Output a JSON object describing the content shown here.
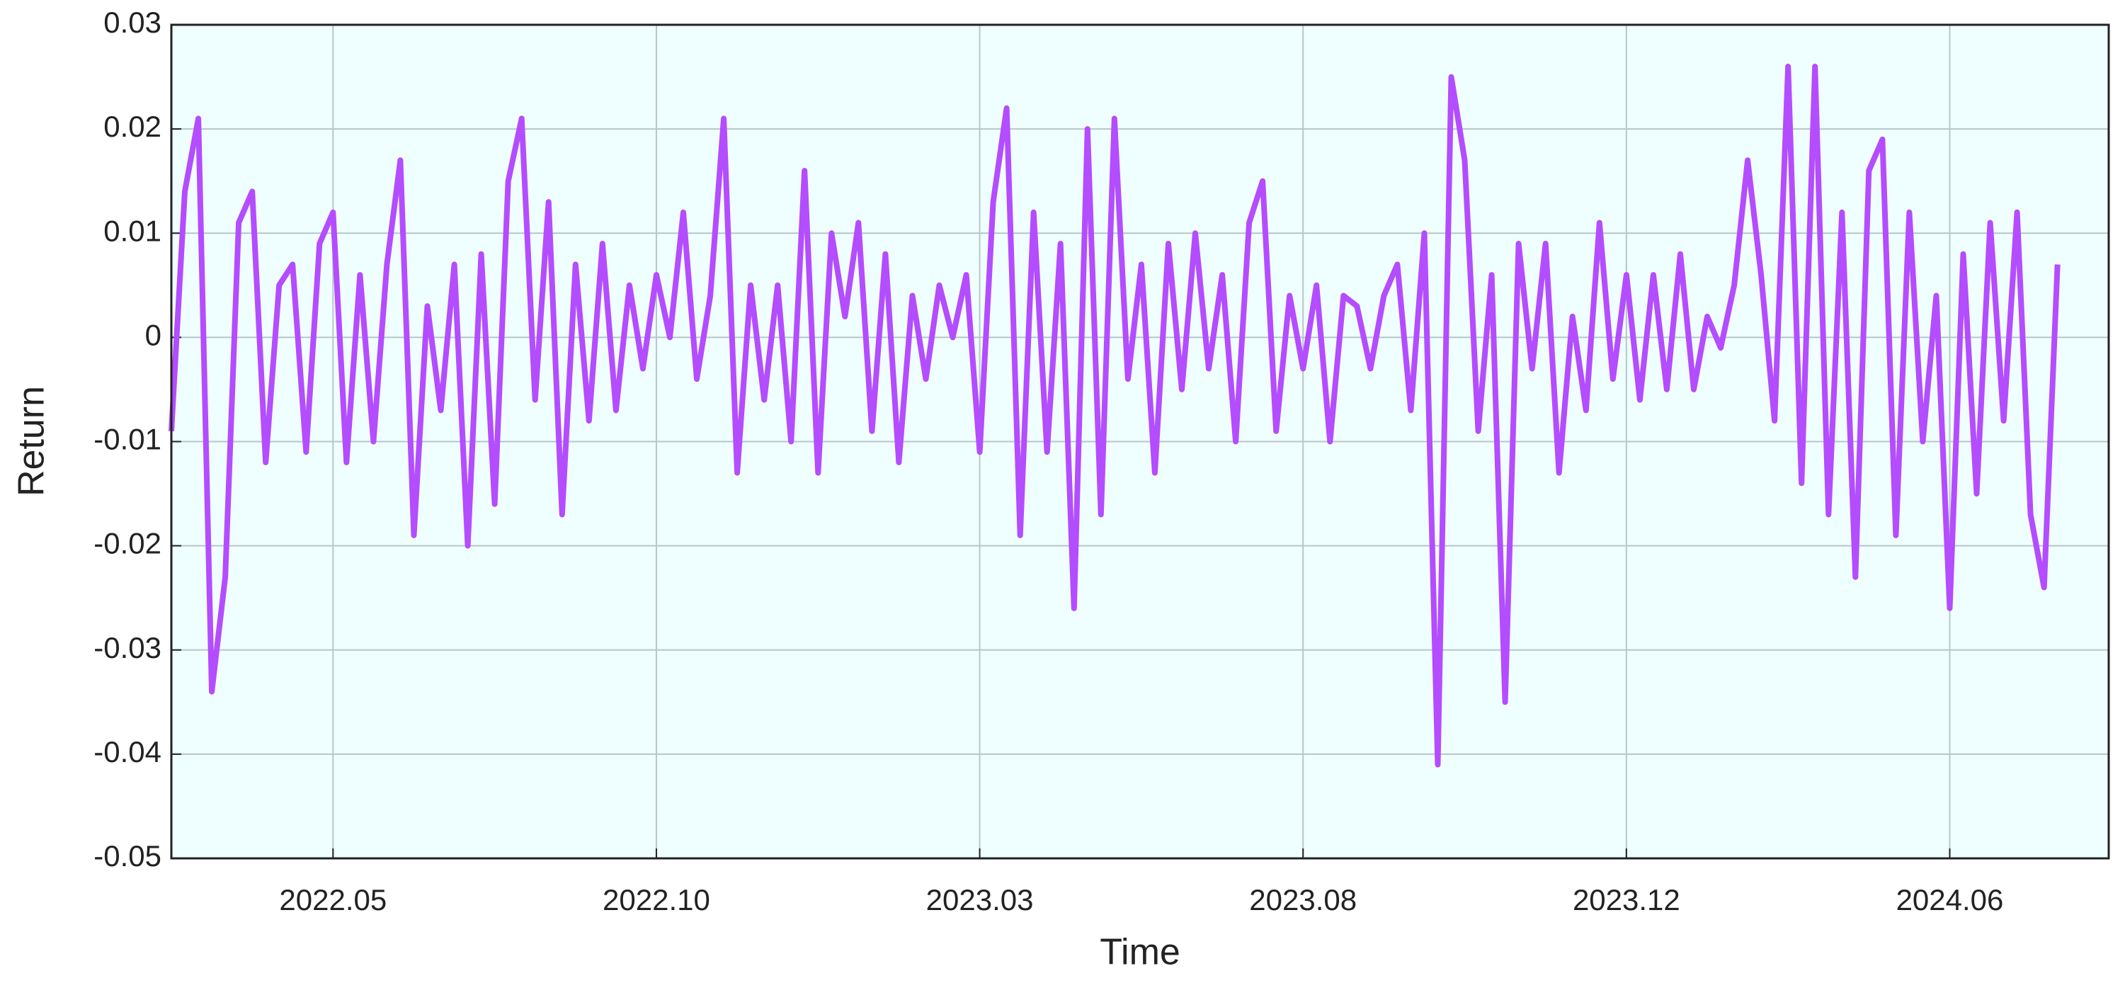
{
  "chart_data": {
    "type": "line",
    "xlabel": "Time",
    "ylabel": "Return",
    "categories": [
      null,
      null,
      null,
      null,
      null,
      null,
      null,
      null,
      null,
      null,
      null,
      null,
      "2022.05",
      null,
      null,
      null,
      null,
      null,
      null,
      null,
      null,
      null,
      null,
      null,
      null,
      null,
      null,
      null,
      null,
      null,
      null,
      null,
      null,
      null,
      null,
      null,
      "2022.10",
      null,
      null,
      null,
      null,
      null,
      null,
      null,
      null,
      null,
      null,
      null,
      null,
      null,
      null,
      null,
      null,
      null,
      null,
      null,
      null,
      null,
      null,
      null,
      "2023.03",
      null,
      null,
      null,
      null,
      null,
      null,
      null,
      null,
      null,
      null,
      null,
      null,
      null,
      null,
      null,
      null,
      null,
      null,
      null,
      null,
      null,
      null,
      null,
      "2023.08",
      null,
      null,
      null,
      null,
      null,
      null,
      null,
      null,
      null,
      null,
      null,
      null,
      null,
      null,
      null,
      null,
      null,
      null,
      null,
      null,
      null,
      null,
      null,
      "2023.12",
      null,
      null,
      null,
      null,
      null,
      null,
      null,
      null,
      null,
      null,
      null,
      null,
      null,
      null,
      null,
      null,
      null,
      null,
      null,
      null,
      null,
      null,
      null,
      "2024.06",
      null,
      null,
      null,
      null,
      null,
      null,
      null,
      null
    ],
    "values": [
      -0.009,
      0.014,
      0.021,
      -0.034,
      -0.023,
      0.011,
      0.014,
      -0.012,
      0.005,
      0.007,
      -0.011,
      0.009,
      0.012,
      -0.012,
      0.006,
      -0.01,
      0.007,
      0.017,
      -0.019,
      0.003,
      -0.007,
      0.007,
      -0.02,
      0.008,
      -0.016,
      0.015,
      0.021,
      -0.006,
      0.013,
      -0.017,
      0.007,
      -0.008,
      0.009,
      -0.007,
      0.005,
      -0.003,
      0.006,
      0.0,
      0.012,
      -0.004,
      0.004,
      0.021,
      -0.013,
      0.005,
      -0.006,
      0.005,
      -0.01,
      0.016,
      -0.013,
      0.01,
      0.002,
      0.011,
      -0.009,
      0.008,
      -0.012,
      0.004,
      -0.004,
      0.005,
      0.0,
      0.006,
      -0.011,
      0.013,
      0.022,
      -0.019,
      0.012,
      -0.011,
      0.009,
      -0.026,
      0.02,
      -0.017,
      0.021,
      -0.004,
      0.007,
      -0.013,
      0.009,
      -0.005,
      0.01,
      -0.003,
      0.006,
      -0.01,
      0.011,
      0.015,
      -0.009,
      0.004,
      -0.003,
      0.005,
      -0.01,
      0.004,
      0.003,
      -0.003,
      0.004,
      0.007,
      -0.007,
      0.01,
      -0.041,
      0.025,
      0.017,
      -0.009,
      0.006,
      -0.035,
      0.009,
      -0.003,
      0.009,
      -0.013,
      0.002,
      -0.007,
      0.011,
      -0.004,
      0.006,
      -0.006,
      0.006,
      -0.005,
      0.008,
      -0.005,
      0.002,
      -0.001,
      0.005,
      0.017,
      0.006,
      -0.008,
      0.026,
      -0.014,
      0.026,
      -0.017,
      0.012,
      -0.023,
      0.016,
      0.019,
      -0.019,
      0.012,
      -0.01,
      0.004,
      -0.026,
      0.008,
      -0.015,
      0.011,
      -0.008,
      0.012,
      -0.017,
      -0.024,
      0.007
    ],
    "color": "#b44cff",
    "background": "#effefe",
    "ylim": [
      -0.05,
      0.03
    ],
    "yticks": [
      -0.05,
      -0.04,
      -0.03,
      -0.02,
      -0.01,
      0,
      0.01,
      0.02,
      0.03
    ],
    "grid": true
  }
}
